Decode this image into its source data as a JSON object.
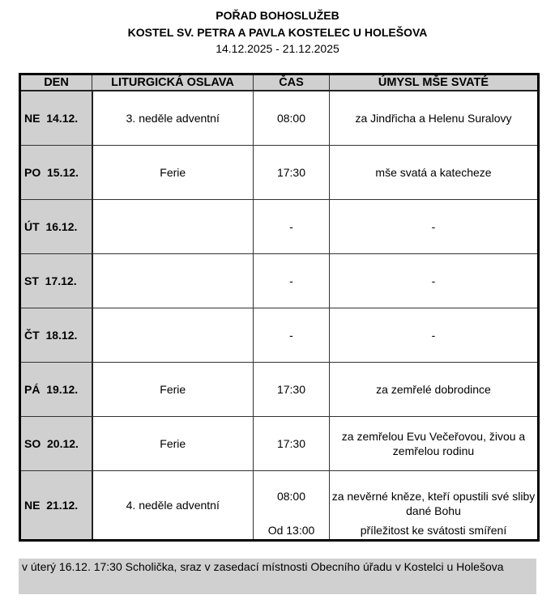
{
  "header": {
    "title": "POŘAD BOHOSLUŽEB",
    "subtitle": "KOSTEL SV. PETRA A PAVLA KOSTELEC U HOLEŠOVA",
    "date_range": "14.12.2025 - 21.12.2025"
  },
  "table": {
    "columns": [
      "DEN",
      "LITURGICKÁ OSLAVA",
      "ČAS",
      "ÚMYSL MŠE SVATÉ"
    ],
    "rows": [
      {
        "day": "NE  14.12.",
        "celebration": "3. neděle adventní",
        "time": "08:00",
        "intention": "za Jindřicha a Helenu Suralovy"
      },
      {
        "day": "PO  15.12.",
        "celebration": "Ferie",
        "time": "17:30",
        "intention": "mše svatá a katecheze"
      },
      {
        "day": "ÚT  16.12.",
        "celebration": "",
        "time": "-",
        "intention": "-"
      },
      {
        "day": "ST  17.12.",
        "celebration": "",
        "time": "-",
        "intention": "-"
      },
      {
        "day": "ČT  18.12.",
        "celebration": "",
        "time": "-",
        "intention": "-"
      },
      {
        "day": "PÁ  19.12.",
        "celebration": "Ferie",
        "time": "17:30",
        "intention": "za zemřelé dobrodince"
      },
      {
        "day": "SO  20.12.",
        "celebration": "Ferie",
        "time": "17:30",
        "intention": "za zemřelou Evu Večeřovou, živou a zemřelou rodinu"
      },
      {
        "day": "NE  21.12.",
        "celebration": "4. neděle adventní",
        "time": "08:00",
        "intention": "za nevěrné kněze, kteří opustili své sliby dané Bohu",
        "time2": "Od 13:00",
        "intention2": "příležitost ke svátosti smíření"
      }
    ]
  },
  "note": "v úterý 16.12. 17:30 Scholička, sraz v zasedací místnosti Obecního úřadu v Kostelci u Holešova"
}
